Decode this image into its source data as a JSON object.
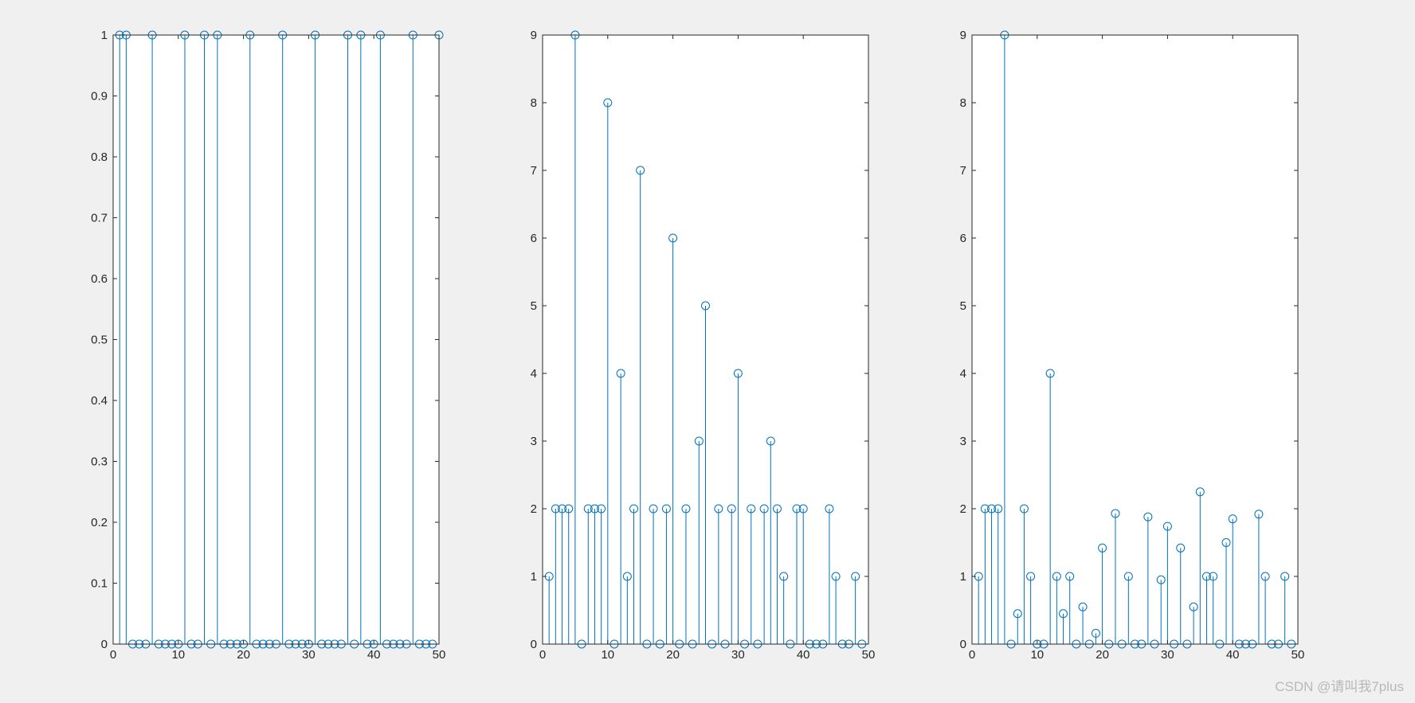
{
  "colors": {
    "figure_background": "#f0f0f0",
    "axes_background": "#ffffff",
    "axes_edge": "#262626",
    "stem": "#0072bd"
  },
  "watermark": "CSDN @请叫我7plus",
  "chart_data": [
    {
      "type": "stem",
      "title": "",
      "xlabel": "",
      "ylabel": "",
      "xlim": [
        0,
        50
      ],
      "ylim": [
        0,
        1
      ],
      "xticks": [
        0,
        10,
        20,
        30,
        40,
        50
      ],
      "yticks": [
        0,
        0.1,
        0.2,
        0.3,
        0.4,
        0.5,
        0.6,
        0.7,
        0.8,
        0.9,
        1
      ],
      "ytick_labels": [
        "0",
        "0.1",
        "0.2",
        "0.3",
        "0.4",
        "0.5",
        "0.6",
        "0.7",
        "0.8",
        "0.9",
        "1"
      ],
      "grid": false,
      "marker": "circle",
      "x": [
        1,
        2,
        3,
        4,
        5,
        6,
        7,
        8,
        9,
        10,
        11,
        12,
        13,
        14,
        15,
        16,
        17,
        18,
        19,
        20,
        21,
        22,
        23,
        24,
        25,
        26,
        27,
        28,
        29,
        30,
        31,
        32,
        33,
        34,
        35,
        36,
        37,
        38,
        39,
        40,
        41,
        42,
        43,
        44,
        45,
        46,
        47,
        48,
        49,
        50
      ],
      "values": [
        1,
        1,
        0,
        0,
        0,
        1,
        0,
        0,
        0,
        0,
        1,
        0,
        0,
        1,
        0,
        1,
        0,
        0,
        0,
        0,
        1,
        0,
        0,
        0,
        0,
        1,
        0,
        0,
        0,
        0,
        1,
        0,
        0,
        0,
        0,
        1,
        0,
        1,
        0,
        0,
        1,
        0,
        0,
        0,
        0,
        1,
        0,
        0,
        0,
        1
      ]
    },
    {
      "type": "stem",
      "title": "",
      "xlabel": "",
      "ylabel": "",
      "xlim": [
        0,
        50
      ],
      "ylim": [
        0,
        9
      ],
      "xticks": [
        0,
        10,
        20,
        30,
        40,
        50
      ],
      "yticks": [
        0,
        1,
        2,
        3,
        4,
        5,
        6,
        7,
        8,
        9
      ],
      "ytick_labels": [
        "0",
        "1",
        "2",
        "3",
        "4",
        "5",
        "6",
        "7",
        "8",
        "9"
      ],
      "grid": false,
      "marker": "circle",
      "x": [
        1,
        2,
        3,
        4,
        5,
        6,
        7,
        8,
        9,
        10,
        11,
        12,
        13,
        14,
        15,
        16,
        17,
        18,
        19,
        20,
        21,
        22,
        23,
        24,
        25,
        26,
        27,
        28,
        29,
        30,
        31,
        32,
        33,
        34,
        35,
        36,
        37,
        38,
        39,
        40,
        41,
        42,
        43,
        44,
        45,
        46,
        47,
        48,
        49
      ],
      "values": [
        1,
        2,
        2,
        2,
        9,
        0,
        2,
        2,
        2,
        8,
        0,
        4,
        1,
        2,
        7,
        0,
        2,
        0,
        2,
        6,
        0,
        2,
        0,
        3,
        5,
        0,
        2,
        0,
        2,
        4,
        0,
        2,
        0,
        2,
        3,
        2,
        1,
        0,
        2,
        2,
        0,
        0,
        0,
        2,
        1,
        0,
        0,
        1,
        0
      ]
    },
    {
      "type": "stem",
      "title": "",
      "xlabel": "",
      "ylabel": "",
      "xlim": [
        0,
        50
      ],
      "ylim": [
        0,
        9
      ],
      "xticks": [
        0,
        10,
        20,
        30,
        40,
        50
      ],
      "yticks": [
        0,
        1,
        2,
        3,
        4,
        5,
        6,
        7,
        8,
        9
      ],
      "ytick_labels": [
        "0",
        "1",
        "2",
        "3",
        "4",
        "5",
        "6",
        "7",
        "8",
        "9"
      ],
      "grid": false,
      "marker": "circle",
      "x": [
        1,
        2,
        3,
        4,
        5,
        6,
        7,
        8,
        9,
        10,
        11,
        12,
        13,
        14,
        15,
        16,
        17,
        18,
        19,
        20,
        21,
        22,
        23,
        24,
        25,
        26,
        27,
        28,
        29,
        30,
        31,
        32,
        33,
        34,
        35,
        36,
        37,
        38,
        39,
        40,
        41,
        42,
        43,
        44,
        45,
        46,
        47,
        48,
        49
      ],
      "values": [
        1,
        2,
        2,
        2,
        9,
        0,
        0.45,
        2,
        1,
        0,
        0,
        4,
        1,
        0.45,
        1,
        0,
        0.55,
        0,
        0.16,
        1.42,
        0,
        1.93,
        0,
        1,
        0,
        0,
        1.88,
        0,
        0.95,
        1.74,
        0,
        1.42,
        0,
        0.55,
        2.25,
        1,
        1,
        0,
        1.5,
        1.85,
        0,
        0,
        0,
        1.92,
        1,
        0,
        0,
        1,
        0
      ]
    }
  ]
}
